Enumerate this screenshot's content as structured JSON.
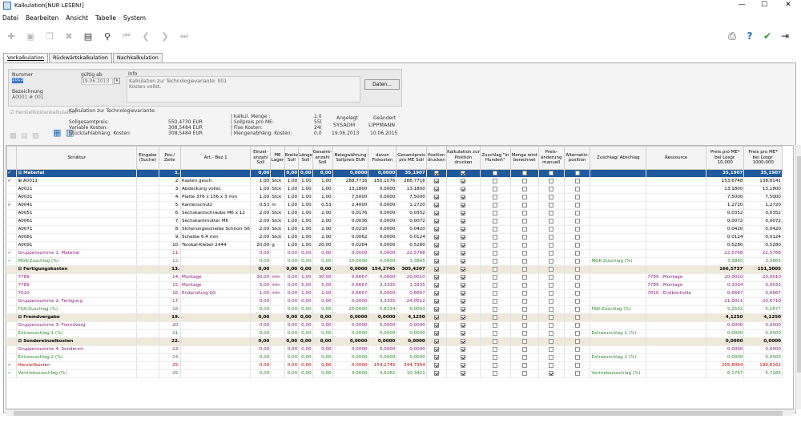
{
  "window": {
    "title": "Kalkulation[NUR LESEN!]"
  },
  "menu": [
    "Datei",
    "Bearbeiten",
    "Ansicht",
    "Tabelle",
    "System"
  ],
  "toolbar": {
    "right_icons": [
      "printer-icon",
      "help-icon",
      "check-icon",
      "exit-icon"
    ]
  },
  "tabs": [
    "Vorkalkulation",
    "Rückwärtskalkulation",
    "Nachkalkulation"
  ],
  "form": {
    "nummer_label": "Nummer",
    "nummer_value": "1013",
    "gueltig_label": "gültig ab",
    "gueltig_value": "19.06.2013",
    "info_label": "Info",
    "info_text1": "Kalkulation zur Technologievariante: 001",
    "info_text2": "Kosten vollst.",
    "bezeichnung_label": "Bezeichnung",
    "bezeichnung_value": "A0001 # 001",
    "daten_button": "Daten..."
  },
  "summary": {
    "herstell_label": "Herstellkostenkalkulation",
    "tech_label": "Kalkulation zur Technologievariante:",
    "soll_label": "Sollgesamtpreis:",
    "soll_value": "550,4730 EUR",
    "var_label": "Variable Kosten:",
    "var_value": "308,5484 EUR",
    "stueck_label": "Stückzahlabhäng. Kosten:",
    "stueck_value": "308,5484 EUR",
    "kalk_menge_label": "| kalkul. Menge :",
    "kalk_menge_value": "1,0",
    "sollpreis_label": "| Sollpreis pro ME:",
    "sollpreis_value": "55(",
    "fixe_label": "| Fixe Kosten:",
    "fixe_value": "24(",
    "mengen_label": "| Mengenabhäng. Kosten:",
    "mengen_value": "0,0",
    "angelegt_label": "Angelegt",
    "angelegt_user": "SYSADM",
    "angelegt_date": "19.06.2013",
    "geaendert_label": "Geändert",
    "geaendert_user": "LIPPMANN",
    "geaendert_date": "10.06.2015"
  },
  "table": {
    "headers": [
      "",
      "Struktur",
      "Eingabe (Suche)",
      "Pos./ Zeile",
      "Art.- Bez 1",
      "Einzel- anzahl Soll",
      "ME Lager",
      "Breite Soll",
      "Länge Soll",
      "Gesamt- anzahl Soll",
      "Belegwährung Sollpreis EUR",
      "davon Fixkosten",
      "Gesamtpreis pro ME Soll",
      "Position drucken",
      "Kalkulation zur Position drucken",
      "Zuschlag \"in Hundert\"",
      "Menge wird berechnet",
      "Preis- änderung manuell",
      "Alternativ- position",
      "Zuschlag/ Abschlag",
      "Ressource",
      "Preis pro ME* bei Losgr. 10.000",
      "Preis pro ME* bei Losgr. 1000,000"
    ],
    "rows": [
      {
        "cls": "hdr-sel",
        "chk": "✓",
        "struct": "⊟ Material",
        "pos": "1.",
        "bez": "",
        "anz": "0,00",
        "me": "",
        "br": "0,00",
        "la": "0,00",
        "ges": "0,00",
        "preis": "0,0000",
        "fix": "0,0000",
        "gpm": "35,1907",
        "cb": [
          1,
          1,
          0,
          0,
          0,
          0
        ],
        "zu": "",
        "res": "",
        "p1": "35,1907",
        "p2": "35,1907"
      },
      {
        "cls": "",
        "chk": "✓",
        "struct": "⊞ A0011",
        "pos": "2.",
        "bez": "Kasten gesch.",
        "anz": "1,00",
        "me": "Stck",
        "br": "1,00",
        "la": "1,00",
        "ges": "1,00",
        "preis": "288,7716",
        "fix": "150,1076",
        "gpm": "288,7716",
        "cb": [
          1,
          1,
          0,
          0,
          0,
          0
        ],
        "zu": "",
        "res": "",
        "p1": "153,6748",
        "p2": "138,8141"
      },
      {
        "cls": "",
        "chk": "",
        "struct": "A0021",
        "pos": "3.",
        "bez": "Abdeckung vollst.",
        "anz": "1,00",
        "me": "Stck",
        "br": "1,00",
        "la": "1,00",
        "ges": "1,00",
        "preis": "13,1800",
        "fix": "0,0000",
        "gpm": "13,1800",
        "cb": [
          1,
          1,
          0,
          0,
          0,
          0
        ],
        "zu": "",
        "res": "",
        "p1": "13,1800",
        "p2": "13,1800"
      },
      {
        "cls": "",
        "chk": "",
        "struct": "A0031",
        "pos": "4.",
        "bez": "Platte 376 x 156 x 3 mm",
        "anz": "1,00",
        "me": "Stck",
        "br": "1,00",
        "la": "1,00",
        "ges": "1,00",
        "preis": "7,5000",
        "fix": "0,0000",
        "gpm": "7,5000",
        "cb": [
          1,
          1,
          0,
          0,
          0,
          0
        ],
        "zu": "",
        "res": "",
        "p1": "7,5000",
        "p2": "7,5000"
      },
      {
        "cls": "",
        "chk": "✓",
        "struct": "A0041",
        "pos": "5.",
        "bez": "Kantenschutz",
        "anz": "0,53",
        "me": "m",
        "br": "1,00",
        "la": "1,00",
        "ges": "0,53",
        "preis": "2,4000",
        "fix": "0,0000",
        "gpm": "1,2720",
        "cb": [
          1,
          1,
          0,
          0,
          0,
          0
        ],
        "zu": "",
        "res": "",
        "p1": "1,2720",
        "p2": "1,2720"
      },
      {
        "cls": "",
        "chk": "",
        "struct": "A0051",
        "pos": "6.",
        "bez": "Sechskantschraube M6 x 12",
        "anz": "2,00",
        "me": "Stck",
        "br": "1,00",
        "la": "1,00",
        "ges": "2,00",
        "preis": "0,0176",
        "fix": "0,0000",
        "gpm": "0,0352",
        "cb": [
          1,
          1,
          0,
          0,
          0,
          0
        ],
        "zu": "",
        "res": "",
        "p1": "0,0352",
        "p2": "0,0352"
      },
      {
        "cls": "",
        "chk": "",
        "struct": "A0061",
        "pos": "7.",
        "bez": "Sechskantmutter M6",
        "anz": "2,00",
        "me": "Stck",
        "br": "1,00",
        "la": "1,00",
        "ges": "2,00",
        "preis": "0,0036",
        "fix": "0,0000",
        "gpm": "0,0072",
        "cb": [
          1,
          1,
          0,
          0,
          0,
          0
        ],
        "zu": "",
        "res": "",
        "p1": "0,0072",
        "p2": "0,0072"
      },
      {
        "cls": "",
        "chk": "",
        "struct": "A0071",
        "pos": "8.",
        "bez": "Sicherungsscheibe Schnorr S6",
        "anz": "2,00",
        "me": "Stck",
        "br": "1,00",
        "la": "1,00",
        "ges": "2,00",
        "preis": "0,0210",
        "fix": "0,0000",
        "gpm": "0,0420",
        "cb": [
          1,
          1,
          0,
          0,
          0,
          0
        ],
        "zu": "",
        "res": "",
        "p1": "0,0420",
        "p2": "0,0420"
      },
      {
        "cls": "",
        "chk": "",
        "struct": "A0081",
        "pos": "9.",
        "bez": "Scheibe 6.4 mm",
        "anz": "2,00",
        "me": "Stck",
        "br": "1,00",
        "la": "1,00",
        "ges": "2,00",
        "preis": "0,0062",
        "fix": "0,0000",
        "gpm": "0,0124",
        "cb": [
          1,
          1,
          0,
          0,
          0,
          0
        ],
        "zu": "",
        "res": "",
        "p1": "0,0124",
        "p2": "0,0124"
      },
      {
        "cls": "",
        "chk": "",
        "struct": "A0091",
        "pos": "10.",
        "bez": "Terokal-Kleber 2444",
        "anz": "20,00",
        "me": "g",
        "br": "1,00",
        "la": "1,00",
        "ges": "20,00",
        "preis": "0,0264",
        "fix": "0,0000",
        "gpm": "0,5280",
        "cb": [
          1,
          1,
          0,
          0,
          0,
          0
        ],
        "zu": "",
        "res": "",
        "p1": "0,5280",
        "p2": "0,5280"
      },
      {
        "cls": "sum",
        "chk": "✓",
        "struct": "Gruppensumme 1: Material",
        "pos": "11.",
        "bez": "",
        "anz": "0,00",
        "me": "",
        "br": "0,00",
        "la": "0,00",
        "ges": "0,00",
        "preis": "0,0000",
        "fix": "0,0000",
        "gpm": "22,5768",
        "cb": [
          1,
          1,
          0,
          0,
          0,
          0
        ],
        "zu": "",
        "res": "",
        "p1": "22,5768",
        "p2": "22,5768"
      },
      {
        "cls": "zu",
        "chk": "✓",
        "struct": "MGK-Zuschlag (%)",
        "pos": "12.",
        "bez": "",
        "anz": "0,00",
        "me": "",
        "br": "0,00",
        "la": "0,00",
        "ges": "0,00",
        "preis": "15,0000",
        "fix": "0,0000",
        "gpm": "3,3865",
        "cb": [
          1,
          1,
          0,
          0,
          0,
          0
        ],
        "zu": "MGK-Zuschlag (%)",
        "res": "",
        "p1": "3,3865",
        "p2": "3,3865"
      },
      {
        "cls": "grp",
        "chk": "",
        "struct": "⊟ Fertigungskosten",
        "pos": "13.",
        "bez": "",
        "anz": "0,00",
        "me": "",
        "br": "0,00",
        "la": "0,00",
        "ges": "0,00",
        "preis": "0,0000",
        "fix": "154,2745",
        "gpm": "305,4207",
        "cb": [
          1,
          1,
          0,
          0,
          0,
          0
        ],
        "zu": "",
        "res": "",
        "p1": "166,5737",
        "p2": "151,3005"
      },
      {
        "cls": "sum",
        "chk": "",
        "struct": "7789",
        "pos": "14.",
        "bez": "Montage",
        "anz": "30,00",
        "me": "min",
        "br": "0,00",
        "la": "1,00",
        "ges": "30,00",
        "preis": "0,6667",
        "fix": "0,0000",
        "gpm": "20,0010",
        "cb": [
          1,
          1,
          0,
          0,
          0,
          0
        ],
        "zu": "",
        "res": "7789 : Montage",
        "p1": "20,0010",
        "p2": "20,0010"
      },
      {
        "cls": "sum",
        "chk": "",
        "struct": "7789",
        "pos": "15.",
        "bez": "Montage",
        "anz": "5,00",
        "me": "min",
        "br": "0,00",
        "la": "5,00",
        "ges": "5,00",
        "preis": "0,6667",
        "fix": "3,3335",
        "gpm": "3,3335",
        "cb": [
          1,
          1,
          0,
          0,
          0,
          0
        ],
        "zu": "",
        "res": "7789 : Montage",
        "p1": "0,3334",
        "p2": "0,0033"
      },
      {
        "cls": "sum",
        "chk": "",
        "struct": "7010",
        "pos": "16.",
        "bez": "Endprüfung QS",
        "anz": "1,00",
        "me": "min",
        "br": "0,00",
        "la": "1,00",
        "ges": "1,00",
        "preis": "0,6667",
        "fix": "0,0000",
        "gpm": "0,6667",
        "cb": [
          1,
          1,
          0,
          0,
          0,
          0
        ],
        "zu": "",
        "res": "7010 : Endkontrolle",
        "p1": "0,6667",
        "p2": "0,6667"
      },
      {
        "cls": "sum",
        "chk": "",
        "struct": "Gruppensumme 2: Fertigung",
        "pos": "17.",
        "bez": "",
        "anz": "0,00",
        "me": "",
        "br": "0,00",
        "la": "0,00",
        "ges": "0,00",
        "preis": "0,0000",
        "fix": "3,3335",
        "gpm": "24,0012",
        "cb": [
          1,
          1,
          0,
          0,
          0,
          0
        ],
        "zu": "",
        "res": "",
        "p1": "21,0011",
        "p2": "20,6710"
      },
      {
        "cls": "zu",
        "chk": "",
        "struct": "FGK-Zuschlag (%)",
        "pos": "18.",
        "bez": "",
        "anz": "0,00",
        "me": "",
        "br": "0,00",
        "la": "0,00",
        "ges": "0,00",
        "preis": "25,0000",
        "fix": "0,8334",
        "gpm": "6,0003",
        "cb": [
          1,
          1,
          0,
          0,
          0,
          0
        ],
        "zu": "FGK-Zuschlag (%)",
        "res": "",
        "p1": "5,2502",
        "p2": "5,1677"
      },
      {
        "cls": "grp",
        "chk": "",
        "struct": "⊟ Fremdvergabe",
        "pos": "19.",
        "bez": "",
        "anz": "0,00",
        "me": "",
        "br": "0,00",
        "la": "0,00",
        "ges": "0,00",
        "preis": "0,0000",
        "fix": "0,0000",
        "gpm": "4,1250",
        "cb": [
          1,
          1,
          0,
          0,
          0,
          0
        ],
        "zu": "",
        "res": "",
        "p1": "4,1250",
        "p2": "4,1250"
      },
      {
        "cls": "sum",
        "chk": "",
        "struct": "Gruppensumme 3: Fremdverg",
        "pos": "20.",
        "bez": "",
        "anz": "0,00",
        "me": "",
        "br": "0,00",
        "la": "0,00",
        "ges": "0,00",
        "preis": "0,0000",
        "fix": "0,0000",
        "gpm": "0,0000",
        "cb": [
          1,
          1,
          0,
          0,
          0,
          0
        ],
        "zu": "",
        "res": "",
        "p1": "0,0000",
        "p2": "0,0000"
      },
      {
        "cls": "zu",
        "chk": "",
        "struct": "Extrazuschlag 1 (%)",
        "pos": "21.",
        "bez": "",
        "anz": "0,00",
        "me": "",
        "br": "0,00",
        "la": "0,00",
        "ges": "0,00",
        "preis": "0,0000",
        "fix": "0,0000",
        "gpm": "0,0000",
        "cb": [
          1,
          1,
          0,
          0,
          0,
          0
        ],
        "zu": "Extrazuschlag 1 (%)",
        "res": "",
        "p1": "0,0000",
        "p2": "0,0000"
      },
      {
        "cls": "grp",
        "chk": "",
        "struct": "⊟ Sondereinzelkosten",
        "pos": "22.",
        "bez": "",
        "anz": "0,00",
        "me": "",
        "br": "0,00",
        "la": "0,00",
        "ges": "0,00",
        "preis": "0,0000",
        "fix": "0,0000",
        "gpm": "0,0000",
        "cb": [
          1,
          1,
          0,
          0,
          0,
          0
        ],
        "zu": "",
        "res": "",
        "p1": "0,0000",
        "p2": "0,0000"
      },
      {
        "cls": "sum",
        "chk": "",
        "struct": "Gruppensumme 4: Sondersin",
        "pos": "23.",
        "bez": "",
        "anz": "0,00",
        "me": "",
        "br": "0,00",
        "la": "0,00",
        "ges": "0,00",
        "preis": "0,0000",
        "fix": "0,0000",
        "gpm": "0,0000",
        "cb": [
          1,
          1,
          0,
          0,
          0,
          0
        ],
        "zu": "",
        "res": "",
        "p1": "0,0000",
        "p2": "0,0000"
      },
      {
        "cls": "zu",
        "chk": "",
        "struct": "Extrazuschlag 2 (%)",
        "pos": "24.",
        "bez": "",
        "anz": "0,00",
        "me": "",
        "br": "0,00",
        "la": "0,00",
        "ges": "0,00",
        "preis": "0,0000",
        "fix": "0,0000",
        "gpm": "0,0000",
        "cb": [
          1,
          1,
          0,
          0,
          0,
          0
        ],
        "zu": "Extrazuschlag 2 (%)",
        "res": "",
        "p1": "0,0000",
        "p2": "0,0000"
      },
      {
        "cls": "hk",
        "chk": "✓",
        "struct": "Herstellkosten",
        "pos": "25.",
        "bez": "",
        "anz": "0,00",
        "me": "",
        "br": "0,00",
        "la": "0,00",
        "ges": "0,00",
        "preis": "0,0000",
        "fix": "154,2745",
        "gpm": "344,7364",
        "cb": [
          1,
          1,
          0,
          0,
          0,
          0
        ],
        "zu": "",
        "res": "",
        "p1": "205,8094",
        "p2": "190,6162"
      },
      {
        "cls": "vz",
        "chk": "✓",
        "struct": "Vertriebszuschlag (%)",
        "pos": "26.",
        "bez": "",
        "anz": "0,00",
        "me": "",
        "br": "0,00",
        "la": "0,00",
        "ges": "0,00",
        "preis": "3,0000",
        "fix": "4,6282",
        "gpm": "10,3421",
        "cb": [
          1,
          1,
          0,
          0,
          1,
          0
        ],
        "zu": "Vertriebszuschlag (%)",
        "res": "",
        "p1": "6,1767",
        "p2": "5,7185"
      }
    ]
  }
}
